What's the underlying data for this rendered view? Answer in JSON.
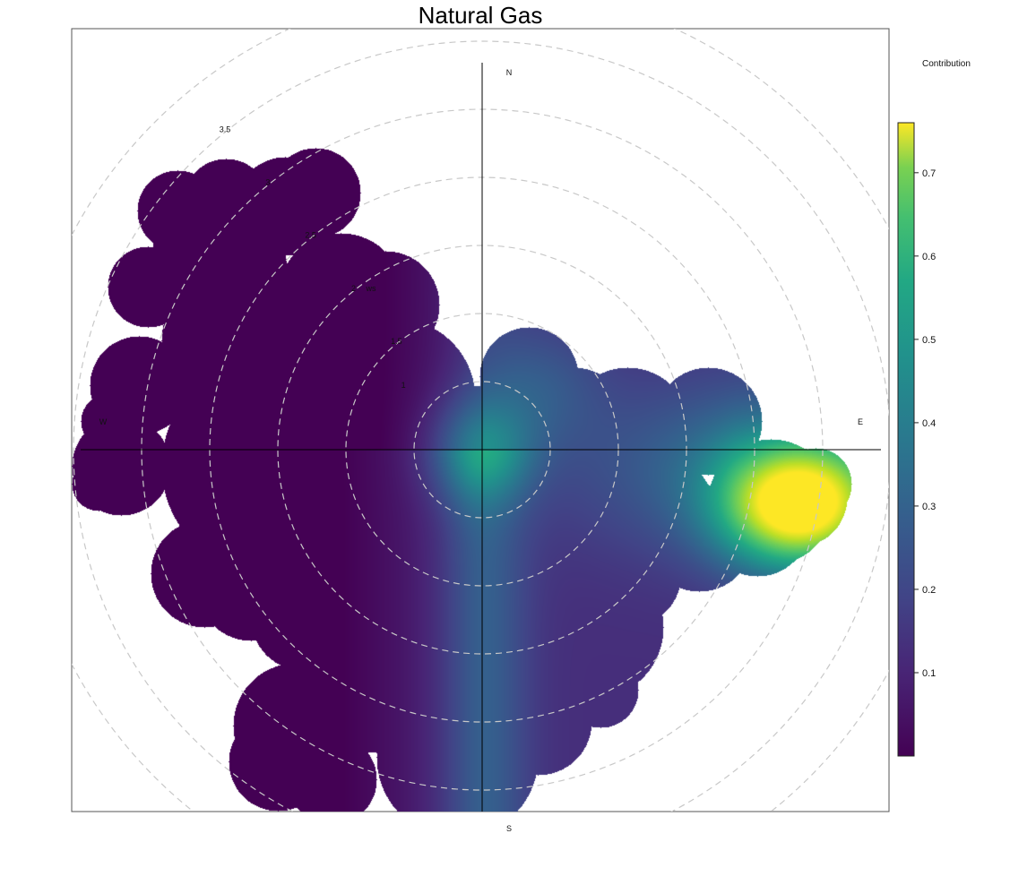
{
  "chart_data": {
    "type": "heatmap",
    "subtype": "polar-plot",
    "title": "Natural Gas",
    "legend_title": "Contribution",
    "colormap": "viridis",
    "legend_placement": "right",
    "color_range": [
      0,
      0.76
    ],
    "colorbar_ticks": [
      "0.1",
      "0.2",
      "0.3",
      "0.4",
      "0.5",
      "0.6",
      "0.7"
    ],
    "colorbar_tick_values": [
      0.1,
      0.2,
      0.3,
      0.4,
      0.5,
      0.6,
      0.7
    ],
    "radial_axis_label": "ws",
    "radial_ticks": [
      "1",
      "1.5",
      "2",
      "2.5",
      "3",
      "3.5"
    ],
    "radial_tick_values": [
      1,
      1.5,
      2,
      2.5,
      3,
      3.5
    ],
    "radial_max": 3.9,
    "directions": [
      "N",
      "E",
      "S",
      "W"
    ],
    "grid": "dashed concentric circles",
    "max_contribution_direction": "E",
    "max_contribution_value": 0.75
  }
}
